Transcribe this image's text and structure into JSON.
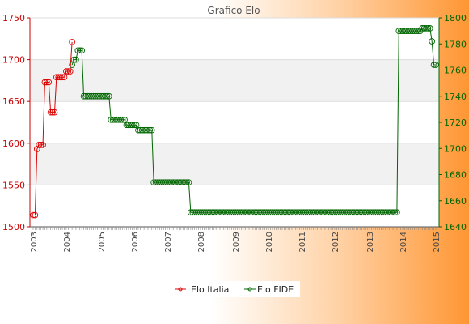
{
  "chart_data": {
    "type": "line",
    "title": "Grafico Elo",
    "grid": "horizontal bands",
    "legend_position": "bottom",
    "y_left": {
      "range": [
        1500,
        1750
      ],
      "ticks": [
        "1500",
        "1550",
        "1600",
        "1650",
        "1700",
        "1750"
      ]
    },
    "y_right": {
      "range": [
        1640,
        1800
      ],
      "ticks": [
        "1640",
        "1660",
        "1680",
        "1700",
        "1720",
        "1740",
        "1760",
        "1780",
        "1800"
      ]
    },
    "x_tick_labels": [
      "2003",
      "2004",
      "2005",
      "2006",
      "2007",
      "2008",
      "2009",
      "2010",
      "2011",
      "2012",
      "2013",
      "2014",
      "2015"
    ],
    "series": [
      {
        "name": "Elo Italia",
        "axis": "left",
        "color": "#dd0000",
        "x_start": 0,
        "values": [
          1514,
          1514,
          1593,
          1598,
          1598,
          1598,
          1673,
          1673,
          1673,
          1637,
          1637,
          1637,
          1679,
          1679,
          1679,
          1679,
          1679,
          1686,
          1686,
          1686,
          1721
        ]
      },
      {
        "name": "Elo FIDE",
        "axis": "right",
        "color": "#006600",
        "x_start": 20,
        "values": [
          1764,
          1768,
          1768,
          1775,
          1775,
          1775,
          1740,
          1740,
          1740,
          1740,
          1740,
          1740,
          1740,
          1740,
          1740,
          1740,
          1740,
          1740,
          1740,
          1740,
          1722,
          1722,
          1722,
          1722,
          1722,
          1722,
          1722,
          1722,
          1718,
          1718,
          1718,
          1718,
          1718,
          1718,
          1714,
          1714,
          1714,
          1714,
          1714,
          1714,
          1714,
          1714,
          1674,
          1674,
          1674,
          1674,
          1674,
          1674,
          1674,
          1674,
          1674,
          1674,
          1674,
          1674,
          1674,
          1674,
          1674,
          1674,
          1674,
          1674,
          1674,
          1651,
          1651,
          1651,
          1651,
          1651,
          1651,
          1651,
          1651,
          1651,
          1651,
          1651,
          1651,
          1651,
          1651,
          1651,
          1651,
          1651,
          1651,
          1651,
          1651,
          1651,
          1651,
          1651,
          1651,
          1651,
          1651,
          1651,
          1651,
          1651,
          1651,
          1651,
          1651,
          1651,
          1651,
          1651,
          1651,
          1651,
          1651,
          1651,
          1651,
          1651,
          1651,
          1651,
          1651,
          1651,
          1651,
          1651,
          1651,
          1651,
          1651,
          1651,
          1651,
          1651,
          1651,
          1651,
          1651,
          1651,
          1651,
          1651,
          1651,
          1651,
          1651,
          1651,
          1651,
          1651,
          1651,
          1651,
          1651,
          1651,
          1651,
          1651,
          1651,
          1651,
          1651,
          1651,
          1651,
          1651,
          1651,
          1651,
          1651,
          1651,
          1651,
          1651,
          1651,
          1651,
          1651,
          1651,
          1651,
          1651,
          1651,
          1651,
          1651,
          1651,
          1651,
          1651,
          1651,
          1651,
          1651,
          1651,
          1651,
          1651,
          1651,
          1651,
          1651,
          1651,
          1651,
          1651,
          1790,
          1790,
          1790,
          1790,
          1790,
          1790,
          1790,
          1790,
          1790,
          1790,
          1790,
          1790,
          1792,
          1792,
          1792,
          1792,
          1792,
          1782,
          1764,
          1764
        ]
      }
    ]
  }
}
